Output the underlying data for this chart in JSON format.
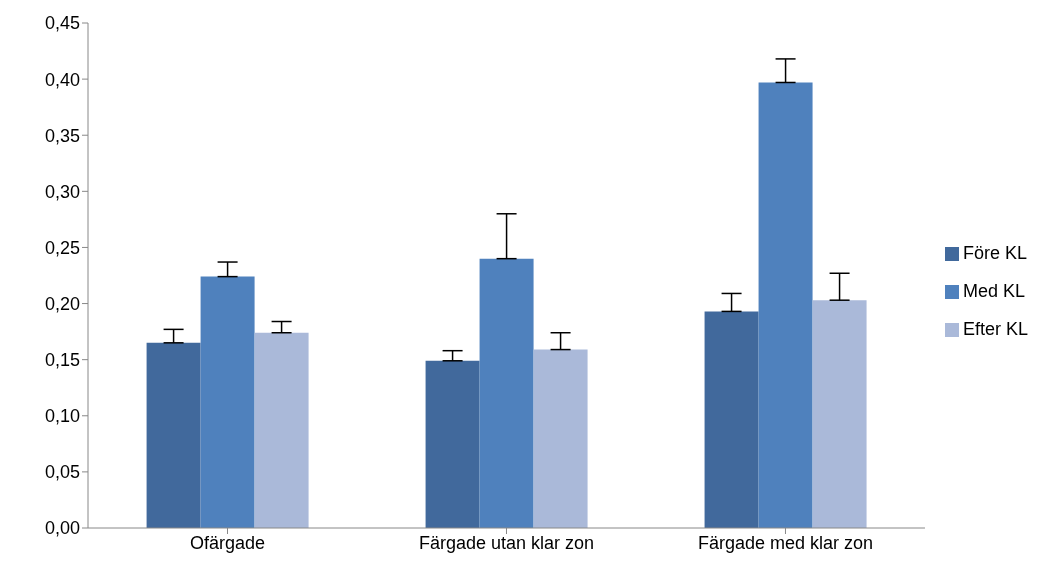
{
  "chart_data": {
    "type": "bar",
    "categories": [
      "Ofärgade",
      "Färgade utan klar zon",
      "Färgade med klar zon"
    ],
    "series": [
      {
        "name": "Före KL",
        "color": "#41699c",
        "values": [
          0.165,
          0.149,
          0.193
        ],
        "errors": [
          [
            0.165,
            0.177
          ],
          [
            0.149,
            0.158
          ],
          [
            0.193,
            0.209
          ]
        ]
      },
      {
        "name": "Med KL",
        "color": "#4f81bd",
        "values": [
          0.224,
          0.24,
          0.397
        ],
        "errors": [
          [
            0.224,
            0.237
          ],
          [
            0.24,
            0.28
          ],
          [
            0.397,
            0.418
          ]
        ]
      },
      {
        "name": "Efter KL",
        "color": "#aab9d9",
        "values": [
          0.174,
          0.159,
          0.203
        ],
        "errors": [
          [
            0.174,
            0.184
          ],
          [
            0.159,
            0.174
          ],
          [
            0.203,
            0.227
          ]
        ]
      }
    ],
    "ylim": [
      0,
      0.45
    ],
    "yticks": [
      {
        "value": 0,
        "label": "0,00"
      },
      {
        "value": 0.05,
        "label": "0,05"
      },
      {
        "value": 0.1,
        "label": "0,10"
      },
      {
        "value": 0.15,
        "label": "0,15"
      },
      {
        "value": 0.2,
        "label": "0,20"
      },
      {
        "value": 0.25,
        "label": "0,25"
      },
      {
        "value": 0.3,
        "label": "0,30"
      },
      {
        "value": 0.35,
        "label": "0,35"
      },
      {
        "value": 0.4,
        "label": "0,40"
      },
      {
        "value": 0.45,
        "label": "0,45"
      }
    ],
    "grid": false,
    "legend": "right"
  }
}
